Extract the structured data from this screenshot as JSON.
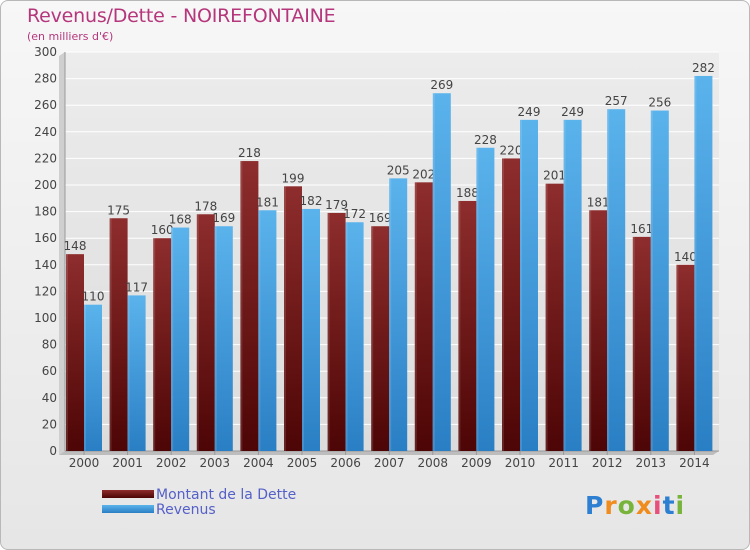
{
  "chart_data": {
    "type": "bar",
    "title": "Revenus/Dette - NOIREFONTAINE",
    "subtitle": "(en milliers d'€)",
    "categories": [
      "2000",
      "2001",
      "2002",
      "2003",
      "2004",
      "2005",
      "2006",
      "2007",
      "2008",
      "2009",
      "2010",
      "2011",
      "2012",
      "2013",
      "2014"
    ],
    "series": [
      {
        "name": "Montant de la Dette",
        "color": "#7a1a1a",
        "values": [
          148,
          175,
          160,
          178,
          218,
          199,
          179,
          169,
          202,
          188,
          220,
          201,
          181,
          161,
          140
        ]
      },
      {
        "name": "Revenus",
        "color": "#4aa3e0",
        "values": [
          110,
          117,
          168,
          169,
          181,
          182,
          172,
          205,
          269,
          228,
          249,
          249,
          257,
          256,
          282
        ]
      }
    ],
    "ylim": [
      0,
      300
    ],
    "yticks": [
      0,
      20,
      40,
      60,
      80,
      100,
      120,
      140,
      160,
      180,
      200,
      220,
      240,
      260,
      280,
      300
    ],
    "grid": true,
    "legend_position": "bottom-left"
  },
  "logo": {
    "text": "Proxiti"
  }
}
